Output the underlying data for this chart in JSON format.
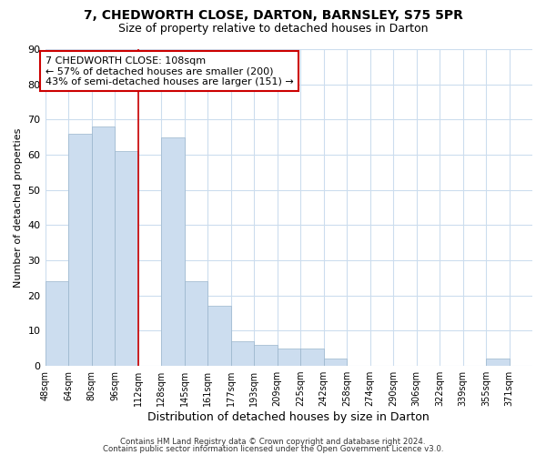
{
  "title1": "7, CHEDWORTH CLOSE, DARTON, BARNSLEY, S75 5PR",
  "title2": "Size of property relative to detached houses in Darton",
  "xlabel": "Distribution of detached houses by size in Darton",
  "ylabel": "Number of detached properties",
  "bin_labels": [
    "48sqm",
    "64sqm",
    "80sqm",
    "96sqm",
    "112sqm",
    "128sqm",
    "145sqm",
    "161sqm",
    "177sqm",
    "193sqm",
    "209sqm",
    "225sqm",
    "242sqm",
    "258sqm",
    "274sqm",
    "290sqm",
    "306sqm",
    "322sqm",
    "339sqm",
    "355sqm",
    "371sqm"
  ],
  "bar_values": [
    24,
    66,
    68,
    61,
    0,
    65,
    24,
    17,
    7,
    6,
    5,
    5,
    2,
    0,
    0,
    0,
    0,
    0,
    0,
    2,
    0
  ],
  "bar_color": "#ccddef",
  "bar_edge_color": "#9ab5cc",
  "red_line_index": 4,
  "annotation_title": "7 CHEDWORTH CLOSE: 108sqm",
  "annotation_line1": "← 57% of detached houses are smaller (200)",
  "annotation_line2": "43% of semi-detached houses are larger (151) →",
  "annotation_box_color": "#ffffff",
  "annotation_box_edge": "#cc0000",
  "red_line_color": "#cc0000",
  "ylim": [
    0,
    90
  ],
  "yticks": [
    0,
    10,
    20,
    30,
    40,
    50,
    60,
    70,
    80,
    90
  ],
  "footer1": "Contains HM Land Registry data © Crown copyright and database right 2024.",
  "footer2": "Contains public sector information licensed under the Open Government Licence v3.0.",
  "bg_color": "#ffffff",
  "grid_color": "#ccddee",
  "title_fontsize": 10,
  "subtitle_fontsize": 9
}
